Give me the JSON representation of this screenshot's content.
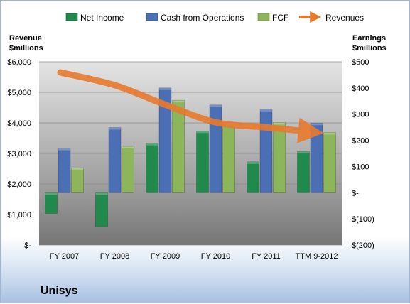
{
  "company_label": "Unisys",
  "colors": {
    "net_income": "#1f8a4c",
    "cash_from_operations": "#4a6fb5",
    "fcf": "#8db65a",
    "revenues": "#e87a2e"
  },
  "chart_data": {
    "type": "bar",
    "categories": [
      "FY 2007",
      "FY 2008",
      "FY 2009",
      "FY 2010",
      "FY 2011",
      "TTM 9-2012"
    ],
    "series": [
      {
        "name": "Net Income",
        "axis": "right",
        "type": "bar",
        "values": [
          -79,
          -130,
          189,
          236,
          118,
          158
        ]
      },
      {
        "name": "Cash from Operations",
        "axis": "right",
        "type": "bar",
        "values": [
          170,
          249,
          400,
          335,
          319,
          266
        ]
      },
      {
        "name": "FCF",
        "axis": "right",
        "type": "bar",
        "values": [
          94,
          177,
          353,
          262,
          268,
          230
        ]
      },
      {
        "name": "Revenues",
        "axis": "left",
        "type": "line",
        "values": [
          5650,
          5233,
          4597,
          4020,
          3854,
          3705
        ]
      }
    ],
    "left_axis": {
      "title": [
        "Revenue",
        "$millions"
      ],
      "range": [
        0,
        6000
      ],
      "ticks": [
        0,
        1000,
        2000,
        3000,
        4000,
        5000,
        6000
      ],
      "tick_labels": [
        "$-",
        "$1,000",
        "$2,000",
        "$3,000",
        "$4,000",
        "$5,000",
        "$6,000"
      ]
    },
    "right_axis": {
      "title": [
        "Earnings",
        "$millions"
      ],
      "range": [
        -200,
        500
      ],
      "ticks": [
        -200,
        -100,
        0,
        100,
        200,
        300,
        400,
        500
      ],
      "tick_labels": [
        "$(200)",
        "$(100)",
        "$-",
        "$100",
        "$200",
        "$300",
        "$400",
        "$500"
      ]
    },
    "legend": {
      "position": "top"
    },
    "grid": true
  }
}
